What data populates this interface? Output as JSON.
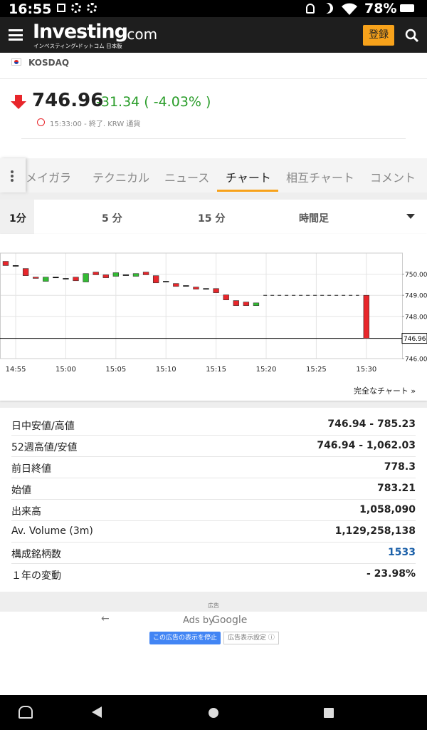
{
  "status_bar": {
    "time": "16:55",
    "battery": "78%"
  },
  "app_bar": {
    "logo": "Investing",
    "logo_suffix": ".com",
    "logo_sub": "インベスティング・ドットコム 日本版",
    "register": "登録"
  },
  "instrument": {
    "name": "KOSDAQ",
    "price": "746.96",
    "change": "-31.34 ( -4.03% )",
    "time_note": "15:33:00 - 終了. KRW 通貨"
  },
  "tabs": [
    "メイガラ",
    "テクニカル",
    "ニュース",
    "チャート",
    "相互チャート",
    "コメント"
  ],
  "timeframes": [
    "1分",
    "5 分",
    "15 分",
    "時間足"
  ],
  "chart_data": {
    "type": "candlestick",
    "x": [
      "14:54",
      "14:55",
      "14:56",
      "14:57",
      "14:58",
      "14:59",
      "15:00",
      "15:01",
      "15:02",
      "15:03",
      "15:04",
      "15:05",
      "15:06",
      "15:07",
      "15:08",
      "15:09",
      "15:10",
      "15:11",
      "15:12",
      "15:13",
      "15:14",
      "15:15",
      "15:16",
      "15:17",
      "15:18",
      "15:19",
      "15:30"
    ],
    "open": [
      750.61,
      750.41,
      750.27,
      749.86,
      749.66,
      749.86,
      749.8,
      749.86,
      749.63,
      750.1,
      749.97,
      749.9,
      749.97,
      749.9,
      750.1,
      749.93,
      749.66,
      749.56,
      749.46,
      749.39,
      749.32,
      749.32,
      749.02,
      748.75,
      748.68,
      748.51,
      749.0
    ],
    "close": [
      750.41,
      750.41,
      749.93,
      749.8,
      749.86,
      749.86,
      749.8,
      749.69,
      750.03,
      749.97,
      749.83,
      750.07,
      749.97,
      750.03,
      749.97,
      749.59,
      749.66,
      749.42,
      749.46,
      749.29,
      749.32,
      749.12,
      748.78,
      748.51,
      748.51,
      748.64,
      746.96
    ],
    "up_color": "#33bb33",
    "down_color": "#e8262b",
    "flat_line": {
      "x": [
        "15:20",
        "15:29"
      ],
      "value": 749
    },
    "last_price": 746.96,
    "xlim": [
      "14:53:26",
      "15:33:34"
    ],
    "ylim": [
      746,
      751
    ],
    "xticks": [
      "14:55",
      "15:00",
      "15:05",
      "15:10",
      "15:15",
      "15:20",
      "15:25",
      "15:30"
    ],
    "yticks": [
      {
        "value": 746,
        "label": "746.00"
      },
      {
        "value": 748,
        "label": "748.00"
      },
      {
        "value": 749,
        "label": "749.00"
      },
      {
        "value": 750,
        "label": "750.00"
      }
    ],
    "grid": true
  },
  "full_chart": "完全なチャート »",
  "stats": [
    [
      "日中安値/高値",
      "746.94 - 785.23"
    ],
    [
      "52週高値/安値",
      "746.94 - 1,062.03"
    ],
    [
      "前日終値",
      "778.3"
    ],
    [
      "始値",
      "783.21"
    ],
    [
      "出来高",
      "1,058,090"
    ],
    [
      "Av. Volume (3m)",
      "1,129,258,138"
    ],
    [
      "構成銘柄数",
      "1533"
    ],
    [
      "１年の変動",
      "- 23.98%"
    ]
  ],
  "ad": {
    "label": "広告",
    "ads_by": "Ads by",
    "google": "Google",
    "stop": "この広告の表示を停止",
    "settings": "広告表示設定 ⓘ"
  }
}
